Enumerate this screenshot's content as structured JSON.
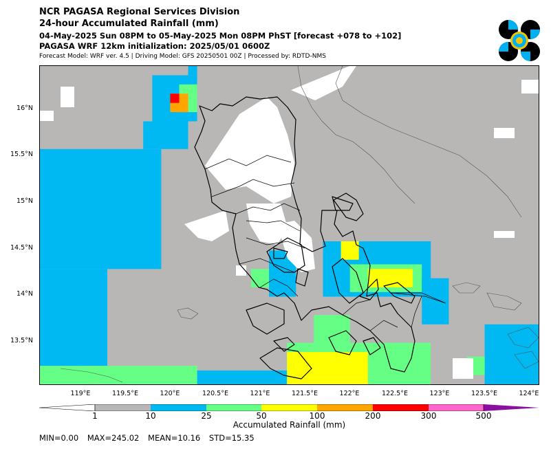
{
  "header": {
    "line1": "NCR PAGASA Regional Services Division",
    "line2": "24-hour Accumulated Rainfall (mm)",
    "line3": "04-May-2025 Sun 08PM to 05-May-2025 Mon 08PM PhST [forecast +078 to +102]",
    "line4": "PAGASA WRF 12km initialization: 2025/05/01 0600Z",
    "line5": "Forecast Model: WRF ver. 4.5 | Driving Model: GFS 20250501 00Z | Processed by: RDTD-NMS"
  },
  "logo": {
    "icon": "pagasa-seal-icon",
    "colors": [
      "#000000",
      "#00b0f0",
      "#f5c400"
    ]
  },
  "map": {
    "lat_labels": [
      "16°N",
      "15.5°N",
      "15°N",
      "14.5°N",
      "14°N",
      "13.5°N"
    ],
    "lat_values": [
      16,
      15.5,
      15,
      14.5,
      14,
      13.5
    ],
    "lon_labels": [
      "119°E",
      "119.5°E",
      "120°E",
      "120.5°E",
      "121°E",
      "121.5°E",
      "122°E",
      "122.5°E",
      "123°E",
      "123.5°E",
      "124°E"
    ],
    "lon_values": [
      119,
      119.5,
      120,
      120.5,
      121,
      121.5,
      122,
      122.5,
      123,
      123.5,
      124
    ],
    "lon_range": [
      118.55,
      124.1
    ],
    "lat_range": [
      13.05,
      16.5
    ],
    "background_color": "#b9b6b6",
    "rain_zones": [
      {
        "lon": [
          118.55,
          119.9
        ],
        "lat": [
          14.3,
          15.6
        ],
        "level": 2
      },
      {
        "lon": [
          118.55,
          119.3
        ],
        "lat": [
          13.25,
          14.3
        ],
        "level": 2
      },
      {
        "lon": [
          119.7,
          120.2
        ],
        "lat": [
          15.6,
          15.9
        ],
        "level": 2
      },
      {
        "lon": [
          119.8,
          120.3
        ],
        "lat": [
          15.9,
          16.4
        ],
        "level": 2
      },
      {
        "lon": [
          120.1,
          120.3
        ],
        "lat": [
          16.0,
          16.3
        ],
        "level": 3
      },
      {
        "lon": [
          120.0,
          120.2
        ],
        "lat": [
          16.0,
          16.2
        ],
        "level": 5
      },
      {
        "lon": [
          120.0,
          120.1
        ],
        "lat": [
          16.1,
          16.2
        ],
        "level": 6
      },
      {
        "lon": [
          120.2,
          120.3
        ],
        "lat": [
          16.4,
          16.5
        ],
        "level": 2
      },
      {
        "lon": [
          118.55,
          120.3
        ],
        "lat": [
          13.05,
          13.25
        ],
        "level": 3
      },
      {
        "lon": [
          120.3,
          121.5
        ],
        "lat": [
          13.05,
          13.2
        ],
        "level": 2
      },
      {
        "lon": [
          121.3,
          122.9
        ],
        "lat": [
          13.05,
          13.5
        ],
        "level": 3
      },
      {
        "lon": [
          121.3,
          122.2
        ],
        "lat": [
          13.05,
          13.4
        ],
        "level": 4
      },
      {
        "lon": [
          121.6,
          122.0
        ],
        "lat": [
          13.5,
          13.8
        ],
        "level": 3
      },
      {
        "lon": [
          120.9,
          121.3
        ],
        "lat": [
          14.1,
          14.3
        ],
        "level": 3
      },
      {
        "lon": [
          121.1,
          121.4
        ],
        "lat": [
          14.0,
          14.5
        ],
        "level": 2
      },
      {
        "lon": [
          121.7,
          122.9
        ],
        "lat": [
          14.0,
          14.6
        ],
        "level": 2
      },
      {
        "lon": [
          122.0,
          122.8
        ],
        "lat": [
          14.05,
          14.35
        ],
        "level": 3
      },
      {
        "lon": [
          122.2,
          122.7
        ],
        "lat": [
          14.1,
          14.3
        ],
        "level": 4
      },
      {
        "lon": [
          121.9,
          122.1
        ],
        "lat": [
          14.4,
          14.6
        ],
        "level": 4
      },
      {
        "lon": [
          122.8,
          123.1
        ],
        "lat": [
          13.7,
          14.2
        ],
        "level": 2
      },
      {
        "lon": [
          123.5,
          124.1
        ],
        "lat": [
          13.05,
          13.7
        ],
        "level": 2
      },
      {
        "lon": [
          123.3,
          123.5
        ],
        "lat": [
          13.15,
          13.35
        ],
        "level": 3
      }
    ]
  },
  "colorbar": {
    "levels": [
      "1",
      "10",
      "25",
      "50",
      "100",
      "200",
      "300",
      "500"
    ],
    "colors": [
      "#ffffff",
      "#b9b6b6",
      "#00b9f2",
      "#66ff86",
      "#ffff00",
      "#ffa500",
      "#ff0000",
      "#ff66cc",
      "#8a0fa0"
    ],
    "title": "Accumulated Rainfall (mm)"
  },
  "stats": {
    "min": "MIN=0.00",
    "max": "MAX=245.02",
    "mean": "MEAN=10.16",
    "std": "STD=15.35"
  }
}
